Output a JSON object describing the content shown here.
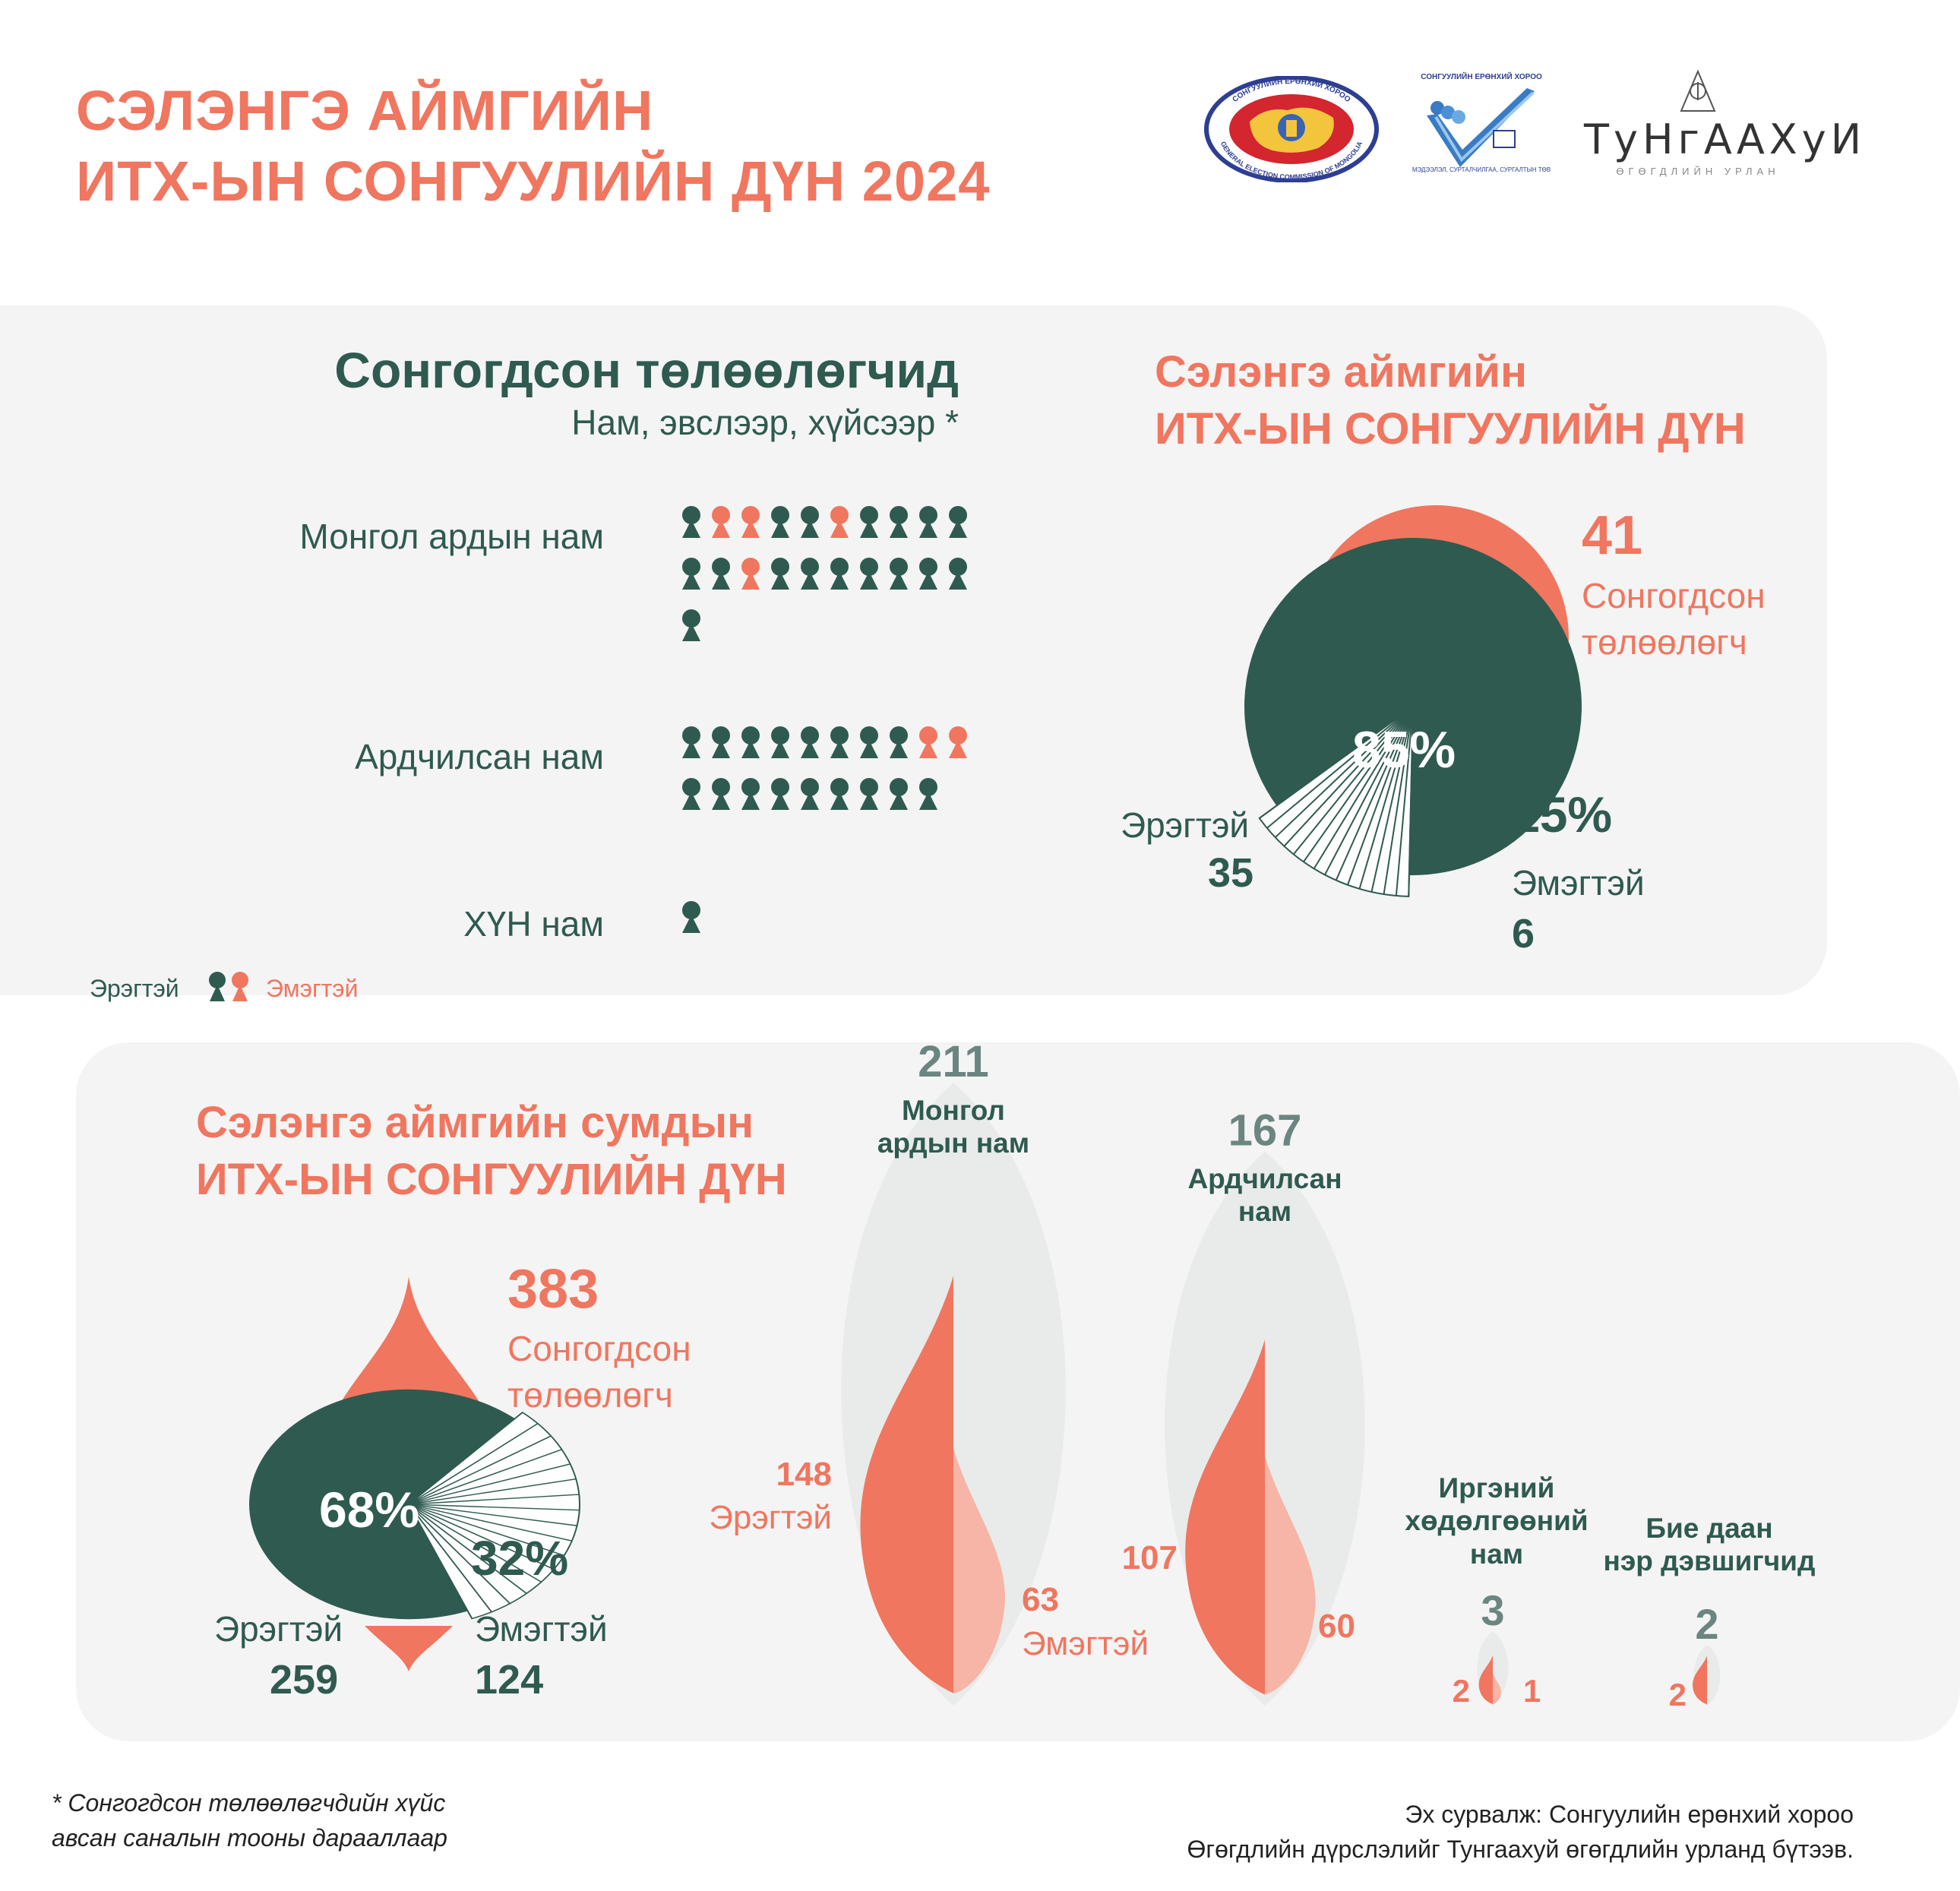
{
  "header": {
    "title_line1": "СЭЛЭНГЭ АЙМГИЙН",
    "title_line2": "ИТХ-ЫН СОНГУУЛИЙН ДҮН 2024",
    "logos": {
      "gec_ring_text": "СОНГУУЛИЙН ЕРӨНХИЙ ХОРОО",
      "gec_ring_text_en": "GENERAL ELECTION COMMISSION OF MONGOLIA",
      "voter_edu_top": "СОНГУУЛИЙН ЕРӨНХИЙ ХОРОО",
      "voter_edu_sub": "МЭДЭЭЛЭЛ, СУРТАЛЧИЛГАА, СУРГАЛТЫН ТӨВ",
      "tungaakhui_name": "ТуНгААХуИ",
      "tungaakhui_sub": "ӨГӨГДЛИЙН УРЛАН"
    }
  },
  "elected": {
    "title": "Сонгогдсон төлөөлөгчид",
    "subtitle": "Нам, эвслээр, хүйсээр *",
    "legend_male": "Эрэгтэй",
    "legend_female": "Эмэгтэй",
    "parties": [
      {
        "name": "Монгол ардын нам",
        "sequence": [
          "m",
          "f",
          "f",
          "m",
          "m",
          "f",
          "m",
          "m",
          "m",
          "m",
          "m",
          "m",
          "f",
          "m",
          "m",
          "m",
          "m",
          "m",
          "m",
          "m",
          "m"
        ]
      },
      {
        "name": "Ардчилсан нам",
        "sequence": [
          "m",
          "m",
          "m",
          "m",
          "m",
          "m",
          "m",
          "m",
          "f",
          "f",
          "m",
          "m",
          "m",
          "m",
          "m",
          "m",
          "m",
          "m",
          "m"
        ]
      },
      {
        "name": "ХҮН нам",
        "sequence": [
          "m"
        ]
      }
    ]
  },
  "aimag": {
    "title_line1": "Сэлэнгэ аймгийн",
    "title_line2": "ИТХ-ЫН СОНГУУЛИЙН ДҮН",
    "total": "41",
    "total_label_line1": "Сонгогдсон",
    "total_label_line2": "төлөөлөгч",
    "male_pct": "85%",
    "female_pct": "15%",
    "male_label": "Эрэгтэй",
    "male_count": "35",
    "female_label": "Эмэгтэй",
    "female_count": "6"
  },
  "soum": {
    "title_line1": "Сэлэнгэ аймгийн сумдын",
    "title_line2": "ИТХ-ЫН СОНГУУЛИЙН ДҮН",
    "total": "383",
    "total_label_line1": "Сонгогдсон",
    "total_label_line2": "төлөөлөгч",
    "male_pct": "68%",
    "female_pct": "32%",
    "male_label": "Эрэгтэй",
    "male_count": "259",
    "female_label": "Эмэгтэй",
    "female_count": "124",
    "parties": [
      {
        "name_line1": "Монгол",
        "name_line2": "ардын нам",
        "name_line3": "",
        "total": "211",
        "male": "148",
        "female": "63",
        "male_label": "Эрэгтэй",
        "female_label": "Эмэгтэй"
      },
      {
        "name_line1": "Ардчилсан",
        "name_line2": "нам",
        "name_line3": "",
        "total": "167",
        "male": "107",
        "female": "60"
      },
      {
        "name_line1": "Иргэний",
        "name_line2": "хөдөлгөөний",
        "name_line3": "нам",
        "total": "3",
        "male": "2",
        "female": "1"
      },
      {
        "name_line1": "Бие даан",
        "name_line2": "нэр дэвшигчид",
        "name_line3": "",
        "total": "2",
        "male": "2",
        "female": ""
      }
    ]
  },
  "footer": {
    "note_line1": "* Сонгогдсон төлөөлөгчдийн хүйс",
    "note_line2": "авсан саналын тооны дарааллаар",
    "source_line1": "Эх сурвалж: Сонгуулийн ерөнхий хороо",
    "source_line2": "Өгөгдлийн дүрслэлийг Тунгаахуй өгөгдлийн урланд бүтээв."
  },
  "colors": {
    "male": "#2F5A50",
    "female": "#F0765F",
    "female_light": "#F6B5A6",
    "panel_bg": "#F4F4F4",
    "bubble_bg": "#E8EBEA"
  },
  "chart_data": [
    {
      "type": "bar",
      "title": "Сонгогдсон төлөөлөгчид",
      "categories": [
        "Монгол ардын нам",
        "Ардчилсан нам",
        "ХҮН нам"
      ],
      "series": [
        {
          "name": "Эрэгтэй",
          "values": [
            17,
            17,
            1
          ]
        },
        {
          "name": "Эмэгтэй",
          "values": [
            4,
            2,
            0
          ]
        }
      ],
      "legend": "bottom-left"
    },
    {
      "type": "pie",
      "title": "Сэлэнгэ аймгийн ИТХ-ЫН СОНГУУЛИЙН ДҮН",
      "labels": [
        "Эрэгтэй",
        "Эмэгтэй"
      ],
      "values": [
        35,
        6
      ],
      "percentages": [
        85,
        15
      ],
      "total": 41
    },
    {
      "type": "pie",
      "title": "Сэлэнгэ аймгийн сумдын ИТХ-ЫН СОНГУУЛИЙН ДҮН",
      "labels": [
        "Эрэгтэй",
        "Эмэгтэй"
      ],
      "values": [
        259,
        124
      ],
      "percentages": [
        68,
        32
      ],
      "total": 383
    },
    {
      "type": "area",
      "categories": [
        "Монгол ардын нам",
        "Ардчилсан нам",
        "Иргэний хөдөлгөөний нам",
        "Бие даан нэр дэвшигчид"
      ],
      "series": [
        {
          "name": "Эрэгтэй",
          "values": [
            148,
            107,
            2,
            2
          ]
        },
        {
          "name": "Эмэгтэй",
          "values": [
            63,
            60,
            1,
            0
          ]
        }
      ],
      "totals": [
        211,
        167,
        3,
        2
      ]
    }
  ]
}
